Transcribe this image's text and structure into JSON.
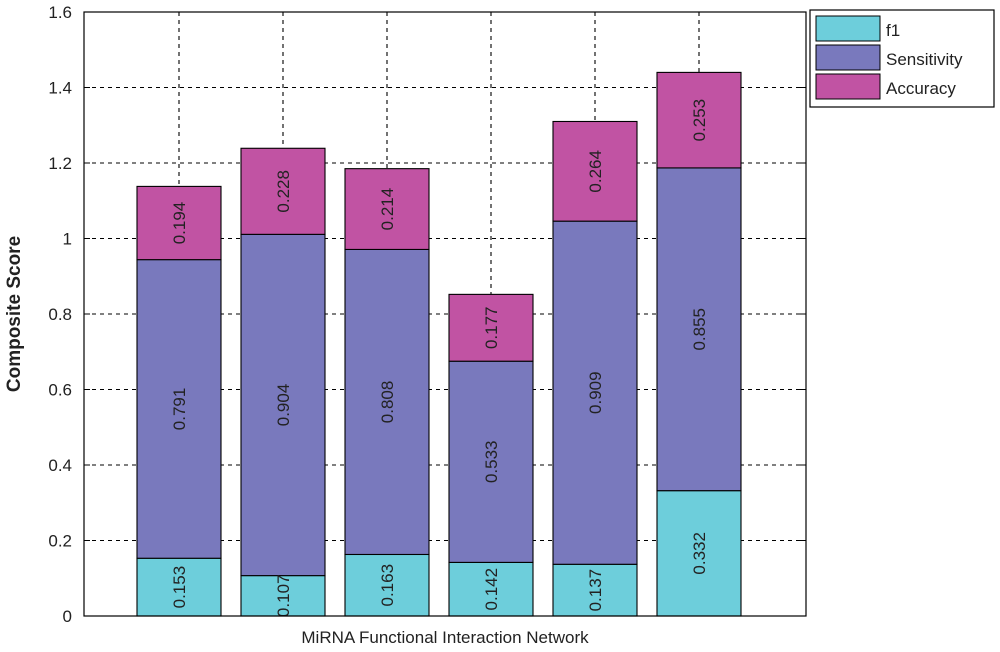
{
  "chart_data": {
    "type": "bar",
    "stacked": true,
    "title": "",
    "xlabel": "MiRNA Functional Interaction Network",
    "ylabel": "Composite Score",
    "ylim": [
      0,
      1.6
    ],
    "yticks": [
      "0",
      "0.2",
      "0.4",
      "0.6",
      "0.8",
      "1",
      "1.2",
      "1.4",
      "1.6"
    ],
    "grid": true,
    "legend_position": "top-right",
    "categories": [
      "",
      "",
      "",
      "",
      "",
      ""
    ],
    "series": [
      {
        "name": "f1",
        "color": "#6dcedb",
        "values": [
          0.153,
          0.107,
          0.163,
          0.142,
          0.137,
          0.332
        ],
        "labels": [
          "0.153",
          "0.107",
          "0.163",
          "0.142",
          "0.137",
          "0.332"
        ]
      },
      {
        "name": "Sensitivity",
        "color": "#7979bd",
        "values": [
          0.791,
          0.904,
          0.808,
          0.533,
          0.909,
          0.855
        ],
        "labels": [
          "0.791",
          "0.904",
          "0.808",
          "0.533",
          "0.909",
          "0.855"
        ]
      },
      {
        "name": "Accuracy",
        "color": "#c153a3",
        "values": [
          0.194,
          0.228,
          0.214,
          0.177,
          0.264,
          0.253
        ],
        "labels": [
          "0.194",
          "0.228",
          "0.214",
          "0.177",
          "0.264",
          "0.253"
        ]
      }
    ]
  }
}
